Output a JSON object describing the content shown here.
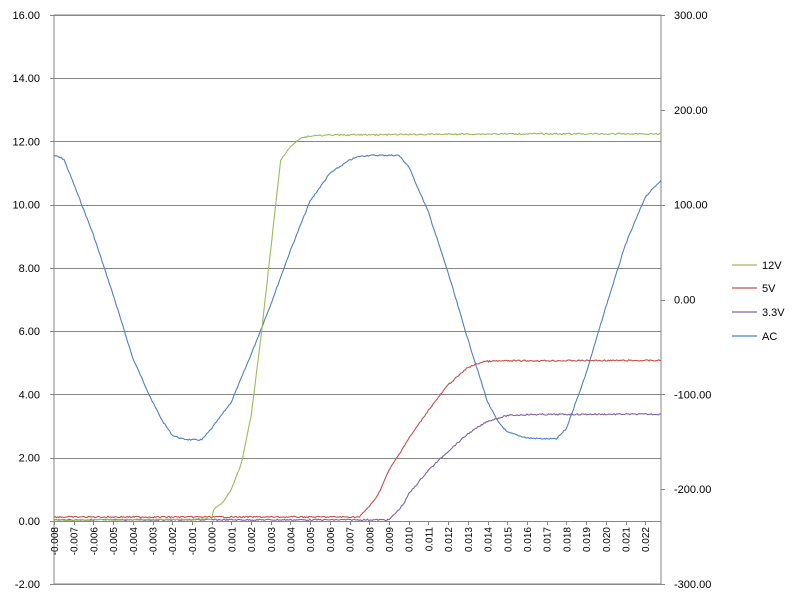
{
  "chart_data": {
    "type": "line",
    "title": "",
    "xlabel": "",
    "ylabel": "",
    "y2label": "",
    "xlim": [
      -0.008,
      0.0228
    ],
    "ylim": [
      -2,
      16
    ],
    "y2lim": [
      -300,
      300
    ],
    "grid": true,
    "legend_position": "right",
    "y_ticks": [
      "-2.00",
      "0.00",
      "2.00",
      "4.00",
      "6.00",
      "8.00",
      "10.00",
      "12.00",
      "14.00",
      "16.00"
    ],
    "y2_ticks": [
      "-300.00",
      "-200.00",
      "-100.00",
      "0.00",
      "100.00",
      "200.00",
      "300.00"
    ],
    "x_ticks": [
      "-0.008",
      "-0.007",
      "-0.006",
      "-0.005",
      "-0.004",
      "-0.003",
      "-0.002",
      "-0.001",
      "0.000",
      "0.001",
      "0.002",
      "0.003",
      "0.004",
      "0.005",
      "0.006",
      "0.007",
      "0.008",
      "0.009",
      "0.010",
      "0.011",
      "0.012",
      "0.013",
      "0.014",
      "0.015",
      "0.016",
      "0.017",
      "0.018",
      "0.019",
      "0.020",
      "0.021",
      "0.022"
    ],
    "series": [
      {
        "name": "12V",
        "axis": "left",
        "color": "#9bbb59",
        "points": [
          [
            -0.008,
            0.02
          ],
          [
            0.0,
            0.05
          ],
          [
            0.0001,
            0.35
          ],
          [
            0.0006,
            0.6
          ],
          [
            0.001,
            1.0
          ],
          [
            0.0015,
            1.8
          ],
          [
            0.002,
            3.3
          ],
          [
            0.0025,
            5.8
          ],
          [
            0.003,
            8.6
          ],
          [
            0.0035,
            11.4
          ],
          [
            0.004,
            11.85
          ],
          [
            0.0045,
            12.1
          ],
          [
            0.005,
            12.17
          ],
          [
            0.006,
            12.2
          ],
          [
            0.01,
            12.22
          ],
          [
            0.015,
            12.24
          ],
          [
            0.02,
            12.24
          ],
          [
            0.0228,
            12.24
          ]
        ]
      },
      {
        "name": "5V",
        "axis": "left",
        "color": "#c0504d",
        "points": [
          [
            -0.008,
            0.12
          ],
          [
            0.0075,
            0.12
          ],
          [
            0.0082,
            0.6
          ],
          [
            0.0085,
            0.9
          ],
          [
            0.009,
            1.6
          ],
          [
            0.01,
            2.6
          ],
          [
            0.011,
            3.5
          ],
          [
            0.012,
            4.3
          ],
          [
            0.013,
            4.85
          ],
          [
            0.0138,
            5.04
          ],
          [
            0.015,
            5.06
          ],
          [
            0.02,
            5.07
          ],
          [
            0.0228,
            5.07
          ]
        ]
      },
      {
        "name": "3.3V",
        "axis": "left",
        "color": "#8064a2",
        "points": [
          [
            -0.008,
            0.03
          ],
          [
            0.009,
            0.03
          ],
          [
            0.0095,
            0.35
          ],
          [
            0.0098,
            0.6
          ],
          [
            0.01,
            0.85
          ],
          [
            0.011,
            1.6
          ],
          [
            0.012,
            2.2
          ],
          [
            0.013,
            2.75
          ],
          [
            0.014,
            3.15
          ],
          [
            0.015,
            3.33
          ],
          [
            0.016,
            3.36
          ],
          [
            0.02,
            3.37
          ],
          [
            0.0228,
            3.37
          ]
        ]
      },
      {
        "name": "AC",
        "axis": "right",
        "color": "#4f81bd",
        "points": [
          [
            -0.008,
            152
          ],
          [
            -0.0075,
            148
          ],
          [
            -0.007,
            122
          ],
          [
            -0.006,
            68
          ],
          [
            -0.005,
            5
          ],
          [
            -0.004,
            -62
          ],
          [
            -0.003,
            -108
          ],
          [
            -0.0025,
            -128
          ],
          [
            -0.002,
            -143
          ],
          [
            -0.0015,
            -147
          ],
          [
            -0.001,
            -148
          ],
          [
            -0.0005,
            -148
          ],
          [
            0.0,
            -136
          ],
          [
            0.001,
            -108
          ],
          [
            0.002,
            -58
          ],
          [
            0.003,
            -5
          ],
          [
            0.004,
            52
          ],
          [
            0.005,
            104
          ],
          [
            0.006,
            133
          ],
          [
            0.007,
            147
          ],
          [
            0.0075,
            151
          ],
          [
            0.008,
            152
          ],
          [
            0.009,
            152
          ],
          [
            0.0095,
            152
          ],
          [
            0.01,
            140
          ],
          [
            0.011,
            92
          ],
          [
            0.012,
            28
          ],
          [
            0.013,
            -42
          ],
          [
            0.014,
            -108
          ],
          [
            0.0145,
            -128
          ],
          [
            0.015,
            -140
          ],
          [
            0.016,
            -146
          ],
          [
            0.017,
            -147
          ],
          [
            0.0175,
            -147
          ],
          [
            0.018,
            -136
          ],
          [
            0.019,
            -78
          ],
          [
            0.02,
            -8
          ],
          [
            0.021,
            58
          ],
          [
            0.022,
            108
          ],
          [
            0.0228,
            126
          ]
        ]
      }
    ]
  }
}
